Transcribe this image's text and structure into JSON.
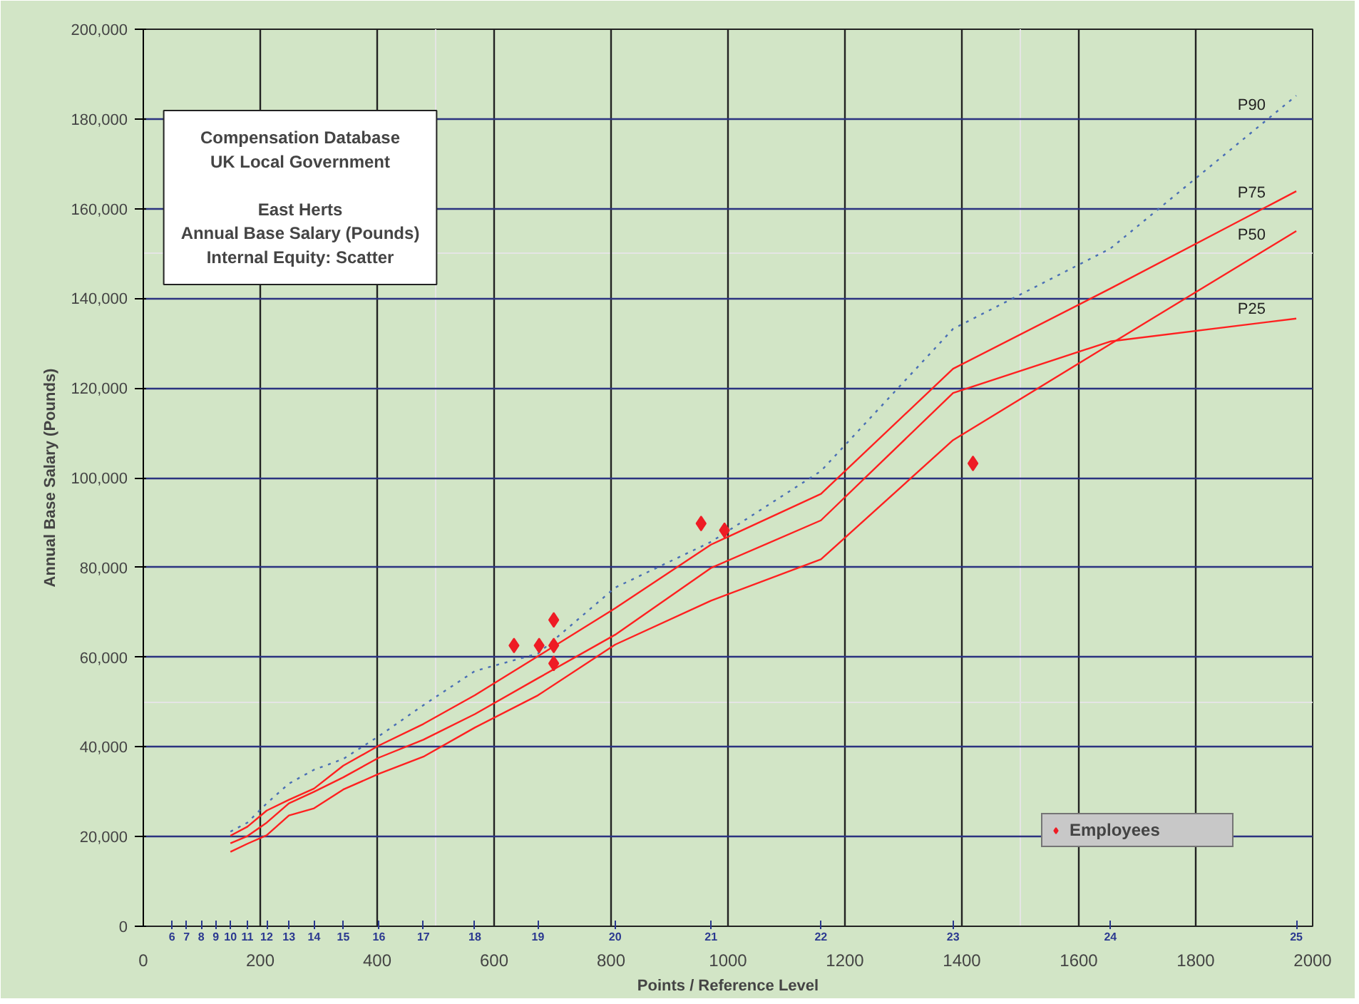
{
  "chart_data": {
    "type": "line",
    "title": "Compensation Database\nUK Local Government",
    "subtitle": "East Herts\nAnnual Base Salary (Pounds)\nInternal Equity: Scatter",
    "xlabel": "Points / Reference Level",
    "ylabel": "Annual Base Salary (Pounds)",
    "x": [
      149,
      178,
      211,
      249,
      292,
      342,
      403,
      479,
      567,
      675,
      807,
      971,
      1159,
      1385,
      1654,
      1972
    ],
    "series": [
      {
        "name": "P90",
        "color": "#4a6fb5",
        "line_style": "dotted",
        "values": [
          21100,
          23100,
          27400,
          31800,
          34900,
          37300,
          42400,
          49300,
          56900,
          60800,
          75500,
          85700,
          101500,
          133200,
          151100,
          185200
        ]
      },
      {
        "name": "P75",
        "color": "#ff2020",
        "values": [
          20200,
          22200,
          25800,
          28200,
          30700,
          35800,
          40300,
          45100,
          51500,
          60200,
          70900,
          85100,
          96400,
          124300,
          142200,
          163900
        ]
      },
      {
        "name": "P25",
        "color": "#ff2020",
        "values": [
          18500,
          20100,
          23100,
          27400,
          30000,
          33200,
          37600,
          41600,
          47300,
          55300,
          65000,
          79900,
          90500,
          118900,
          130400,
          135500
        ]
      },
      {
        "name": "P50",
        "color": "#ff2020",
        "values": [
          16600,
          18400,
          20300,
          24700,
          26300,
          30500,
          34000,
          37800,
          44300,
          51500,
          62800,
          72600,
          81800,
          108400,
          129800,
          155000
        ]
      },
      {
        "name": "Employees",
        "type": "scatter",
        "marker": "diamond",
        "color": "#ee1c25",
        "x": [
          634,
          677,
          702,
          702,
          702,
          954,
          994,
          1419
        ],
        "values": [
          62600,
          62600,
          62600,
          68300,
          58600,
          89800,
          88300,
          103200
        ]
      }
    ],
    "xlim": [
      0,
      2000
    ],
    "xticks": [
      0,
      200,
      400,
      600,
      800,
      1000,
      1200,
      1400,
      1600,
      1800,
      2000
    ],
    "ylim": [
      0,
      200000
    ],
    "yticks": [
      {
        "value": 0,
        "label": "0"
      },
      {
        "value": 20000,
        "label": "20,000"
      },
      {
        "value": 40000,
        "label": "40,000"
      },
      {
        "value": 60000,
        "label": "60,000"
      },
      {
        "value": 80000,
        "label": "80,000"
      },
      {
        "value": 100000,
        "label": "100,000"
      },
      {
        "value": 120000,
        "label": "120,000"
      },
      {
        "value": 140000,
        "label": "140,000"
      },
      {
        "value": 160000,
        "label": "160,000"
      },
      {
        "value": 180000,
        "label": "180,000"
      },
      {
        "value": 200000,
        "label": "200,000"
      }
    ],
    "annotations": [
      "6",
      "7",
      "8",
      "9",
      "10",
      "11",
      "12",
      "13",
      "14",
      "15",
      "16",
      "17",
      "18",
      "19",
      "20",
      "21",
      "22",
      "23",
      "24",
      "25"
    ],
    "grid": true,
    "legend": "bottom right",
    "marker": "none",
    "line_style": "solid"
  }
}
